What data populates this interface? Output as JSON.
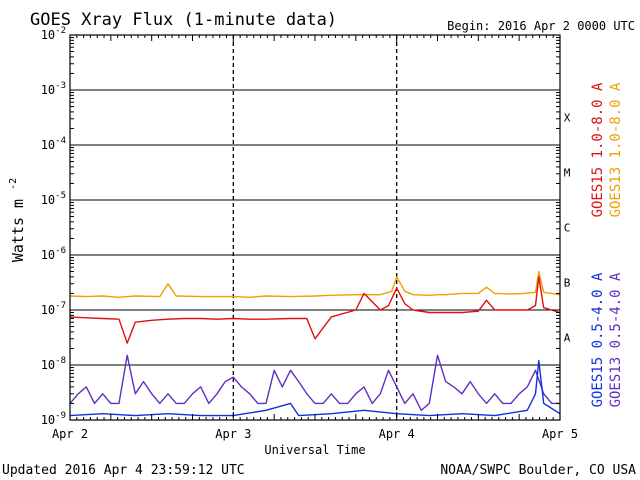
{
  "chart_data": {
    "type": "line",
    "title": "GOES Xray Flux (1-minute data)",
    "begin": "Begin:  2016 Apr 2 0000 UTC",
    "xlabel": "Universal Time",
    "ylabel": "Watts m",
    "ylabel_sup": "-2",
    "y_scale": "log",
    "ylim": [
      1e-09,
      0.01
    ],
    "xlim_days": [
      0,
      3
    ],
    "grid": true,
    "x_tick_labels": [
      "Apr 2",
      "Apr 3",
      "Apr 4",
      "Apr 5"
    ],
    "y_tick_labels": [
      {
        "base": "10",
        "exp": "-9"
      },
      {
        "base": "10",
        "exp": "-8"
      },
      {
        "base": "10",
        "exp": "-7"
      },
      {
        "base": "10",
        "exp": "-6"
      },
      {
        "base": "10",
        "exp": "-5"
      },
      {
        "base": "10",
        "exp": "-4"
      },
      {
        "base": "10",
        "exp": "-3"
      },
      {
        "base": "10",
        "exp": "-2"
      }
    ],
    "flare_classes": [
      {
        "label": "A",
        "log_flux": -7.5
      },
      {
        "label": "B",
        "log_flux": -6.5
      },
      {
        "label": "C",
        "log_flux": -5.5
      },
      {
        "label": "M",
        "log_flux": -4.5
      },
      {
        "label": "X",
        "log_flux": -3.5
      }
    ],
    "series": [
      {
        "name": "GOES13 1.0-8.0 A",
        "color": "#f0a000",
        "x": [
          0,
          0.1,
          0.2,
          0.3,
          0.35,
          0.4,
          0.55,
          0.6,
          0.65,
          0.8,
          1.0,
          1.1,
          1.2,
          1.35,
          1.5,
          1.6,
          1.75,
          1.85,
          1.9,
          1.97,
          2.0,
          2.05,
          2.1,
          2.2,
          2.25,
          2.3,
          2.4,
          2.5,
          2.55,
          2.6,
          2.7,
          2.78,
          2.85,
          2.87,
          2.9,
          3.0
        ],
        "y": [
          1.8e-07,
          1.75e-07,
          1.8e-07,
          1.7e-07,
          1.75e-07,
          1.8e-07,
          1.75e-07,
          3e-07,
          1.8e-07,
          1.75e-07,
          1.75e-07,
          1.7e-07,
          1.8e-07,
          1.75e-07,
          1.8e-07,
          1.85e-07,
          1.9e-07,
          1.9e-07,
          1.9e-07,
          2.2e-07,
          4e-07,
          2.2e-07,
          1.9e-07,
          1.85e-07,
          1.9e-07,
          1.9e-07,
          2e-07,
          2e-07,
          2.6e-07,
          2e-07,
          1.95e-07,
          2e-07,
          2.1e-07,
          5e-07,
          2.1e-07,
          1.9e-07
        ]
      },
      {
        "name": "GOES15 1.0-8.0 A",
        "color": "#e01010",
        "x": [
          0,
          0.1,
          0.2,
          0.3,
          0.35,
          0.4,
          0.5,
          0.6,
          0.7,
          0.8,
          0.9,
          1.0,
          1.1,
          1.2,
          1.35,
          1.45,
          1.5,
          1.6,
          1.75,
          1.8,
          1.9,
          1.95,
          2.0,
          2.05,
          2.1,
          2.2,
          2.3,
          2.4,
          2.5,
          2.55,
          2.6,
          2.7,
          2.8,
          2.85,
          2.87,
          2.9,
          3.0
        ],
        "y": [
          7.5e-08,
          7.2e-08,
          7e-08,
          6.8e-08,
          2.5e-08,
          6e-08,
          6.5e-08,
          6.8e-08,
          7e-08,
          7e-08,
          6.8e-08,
          7e-08,
          6.8e-08,
          6.8e-08,
          7e-08,
          7e-08,
          3e-08,
          7.5e-08,
          1e-07,
          2e-07,
          1e-07,
          1.2e-07,
          2.5e-07,
          1.3e-07,
          1e-07,
          9e-08,
          9e-08,
          9e-08,
          9.5e-08,
          1.5e-07,
          1e-07,
          1e-07,
          1e-07,
          1.2e-07,
          4e-07,
          1.1e-07,
          9e-08
        ]
      },
      {
        "name": "GOES13 0.5-4.0 A",
        "color": "#6030c0",
        "x": [
          0,
          0.05,
          0.1,
          0.15,
          0.2,
          0.25,
          0.3,
          0.35,
          0.4,
          0.45,
          0.5,
          0.55,
          0.6,
          0.65,
          0.7,
          0.75,
          0.8,
          0.85,
          0.9,
          0.95,
          1.0,
          1.05,
          1.1,
          1.15,
          1.2,
          1.25,
          1.3,
          1.35,
          1.4,
          1.45,
          1.5,
          1.55,
          1.6,
          1.65,
          1.7,
          1.75,
          1.8,
          1.85,
          1.9,
          1.95,
          2.0,
          2.05,
          2.1,
          2.15,
          2.2,
          2.25,
          2.3,
          2.35,
          2.4,
          2.45,
          2.5,
          2.55,
          2.6,
          2.65,
          2.7,
          2.75,
          2.8,
          2.85,
          2.9,
          2.95,
          3.0
        ],
        "y": [
          2e-09,
          3e-09,
          4e-09,
          2e-09,
          3e-09,
          2e-09,
          2e-09,
          1.5e-08,
          3e-09,
          5e-09,
          3e-09,
          2e-09,
          3e-09,
          2e-09,
          2e-09,
          3e-09,
          4e-09,
          2e-09,
          3e-09,
          5e-09,
          6e-09,
          4e-09,
          3e-09,
          2e-09,
          2e-09,
          8e-09,
          4e-09,
          8e-09,
          5e-09,
          3e-09,
          2e-09,
          2e-09,
          3e-09,
          2e-09,
          2e-09,
          3e-09,
          4e-09,
          2e-09,
          3e-09,
          8e-09,
          4e-09,
          2e-09,
          3e-09,
          1.5e-09,
          2e-09,
          1.5e-08,
          5e-09,
          4e-09,
          3e-09,
          5e-09,
          3e-09,
          2e-09,
          3e-09,
          2e-09,
          2e-09,
          3e-09,
          4e-09,
          8e-09,
          3e-09,
          2e-09,
          2e-09
        ]
      },
      {
        "name": "GOES15 0.5-4.0 A",
        "color": "#1030e0",
        "x": [
          0,
          0.2,
          0.4,
          0.6,
          0.8,
          1.0,
          1.2,
          1.35,
          1.4,
          1.6,
          1.8,
          2.0,
          2.2,
          2.4,
          2.6,
          2.8,
          2.85,
          2.87,
          2.9,
          3.0
        ],
        "y": [
          1.2e-09,
          1.3e-09,
          1.2e-09,
          1.3e-09,
          1.2e-09,
          1.2e-09,
          1.5e-09,
          2e-09,
          1.2e-09,
          1.3e-09,
          1.5e-09,
          1.3e-09,
          1.2e-09,
          1.3e-09,
          1.2e-09,
          1.5e-09,
          3e-09,
          1.2e-08,
          2e-09,
          1.3e-09
        ]
      }
    ]
  },
  "footer": {
    "updated": "Updated 2016 Apr  4 23:59:12 UTC",
    "credit": "NOAA/SWPC Boulder, CO USA"
  }
}
